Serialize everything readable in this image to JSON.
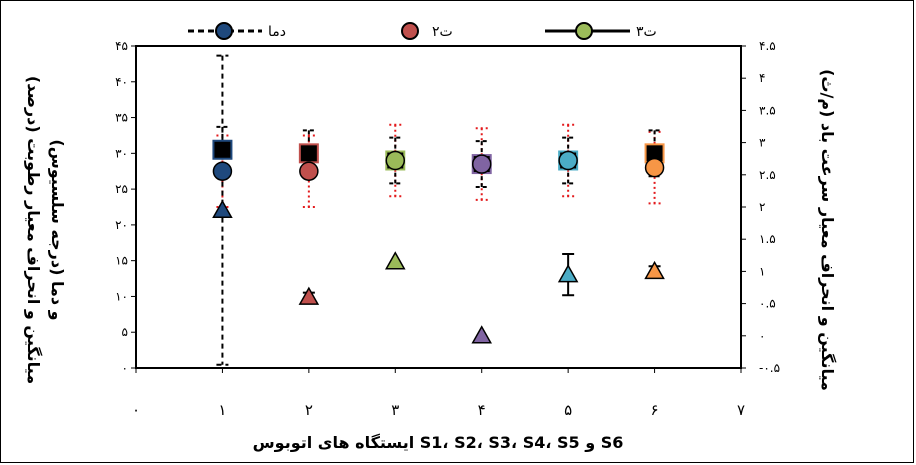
{
  "chart_data": {
    "type": "scatter",
    "x": [
      1,
      2,
      3,
      4,
      5,
      6
    ],
    "xlim": [
      0,
      7
    ],
    "x_ticks": [
      "۰",
      "۱",
      "۲",
      "۳",
      "۴",
      "۵",
      "۶",
      "۷"
    ],
    "xlabel": "ایستگاه های اتوبوس S1، S2، S3، S4، S5 و S6",
    "y_left": {
      "lim": [
        0,
        45
      ],
      "ticks": [
        "۰",
        "۵",
        "۱۰",
        "۱۵",
        "۲۰",
        "۲۵",
        "۳۰",
        "۳۵",
        "۴۰",
        "۴۵"
      ],
      "label_line1": "میانگین و انحراف معیار رطوبت (درصد)",
      "label_line2": "و دما (درجه سلسیوس)"
    },
    "y_right": {
      "lim": [
        -0.5,
        4.5
      ],
      "ticks": [
        "-۰.۵",
        "۰",
        "۰.۵",
        "۱",
        "۱.۵",
        "۲",
        "۲.۵",
        "۳",
        "۳.۵",
        "۴",
        "۴.۵"
      ],
      "label": "میانگین و انحراف معیار سرعت باد (م/ث)"
    },
    "legend": {
      "position": "top",
      "entries": [
        "دما",
        "۲ت",
        "۳ت"
      ]
    },
    "series": [
      {
        "axis": "left",
        "marker": "square",
        "color": "#000000",
        "values": [
          30.5,
          30.0,
          29.0,
          28.5,
          29.0,
          30.0
        ],
        "errors": [
          3.2,
          3.2,
          3.2,
          3.2,
          3.2,
          3.2
        ]
      },
      {
        "axis": "left",
        "marker": "circle",
        "color_edges": [
          "#1f497d",
          "#c0504d",
          "#9bbb59",
          "#8064a2",
          "#4bacc6",
          "#f79646"
        ],
        "values": [
          27.5,
          27.5,
          29.0,
          28.5,
          29.0,
          28.0
        ],
        "errors": [
          5.0,
          5.0,
          5.0,
          5.0,
          5.0,
          5.0
        ]
      },
      {
        "axis": "right",
        "marker": "triangle",
        "color_edges": [
          "#1f497d",
          "#c0504d",
          "#9bbb59",
          "#8064a2",
          "#4bacc6",
          "#f79646"
        ],
        "values": [
          1.95,
          0.6,
          1.15,
          0.0,
          0.95,
          1.0
        ],
        "errors": [
          2.4,
          0.07,
          0.0,
          0.0,
          0.32,
          0.08
        ]
      }
    ]
  }
}
